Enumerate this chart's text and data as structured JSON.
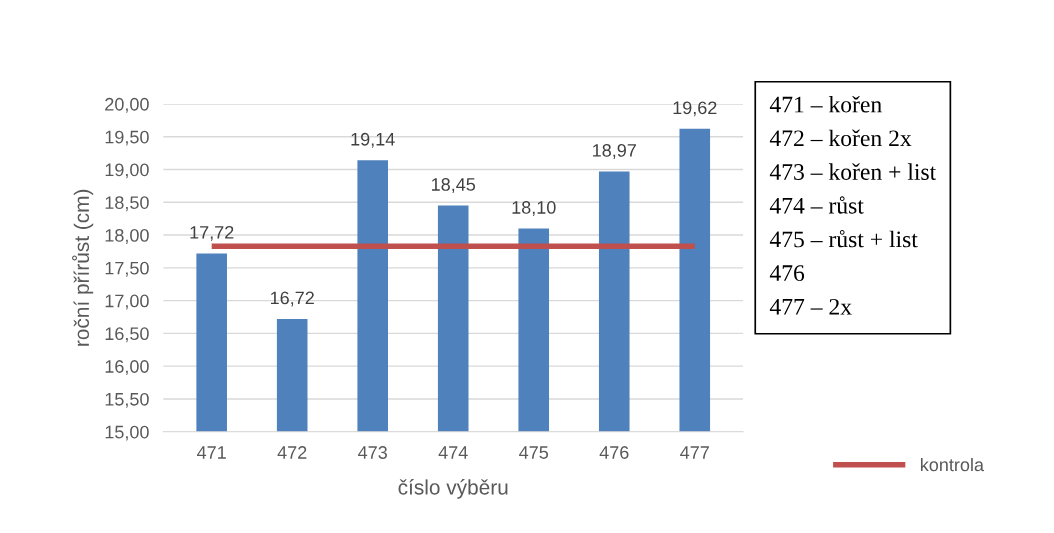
{
  "chart_data": {
    "type": "bar",
    "xlabel": "číslo výběru",
    "ylabel": "roční přírůst (cm)",
    "categories": [
      "471",
      "472",
      "473",
      "474",
      "475",
      "476",
      "477"
    ],
    "series": [
      {
        "color": "#4f81bd",
        "values": [
          17.72,
          16.72,
          19.14,
          18.45,
          18.1,
          18.97,
          19.62
        ],
        "value_labels": [
          "17,72",
          "16,72",
          "19,14",
          "18,45",
          "18,10",
          "18,97",
          "19,62"
        ]
      },
      {
        "type": "line",
        "name": "kontrola",
        "color": "#c0504d",
        "values": [
          17.83,
          17.83,
          17.83,
          17.83,
          17.83,
          17.83,
          17.83
        ]
      }
    ],
    "ylim": [
      15,
      20
    ],
    "yticks": [
      {
        "value": 15,
        "label": "15,00"
      },
      {
        "value": 15.5,
        "label": "15,50"
      },
      {
        "value": 16,
        "label": "16,00"
      },
      {
        "value": 16.5,
        "label": "16,50"
      },
      {
        "value": 17,
        "label": "17,00"
      },
      {
        "value": 17.5,
        "label": "17,50"
      },
      {
        "value": 18,
        "label": "18,00"
      },
      {
        "value": 18.5,
        "label": "18,50"
      },
      {
        "value": 19,
        "label": "19,00"
      },
      {
        "value": 19.5,
        "label": "19,50"
      },
      {
        "value": 20,
        "label": "20,00"
      }
    ],
    "grid": "y",
    "legend": "bottom right",
    "annotations": [
      "471 – kořen",
      "472 – kořen 2x",
      "473 – kořen + list",
      "474 – růst",
      "475 – růst + list",
      "476",
      "477 – 2x"
    ]
  }
}
